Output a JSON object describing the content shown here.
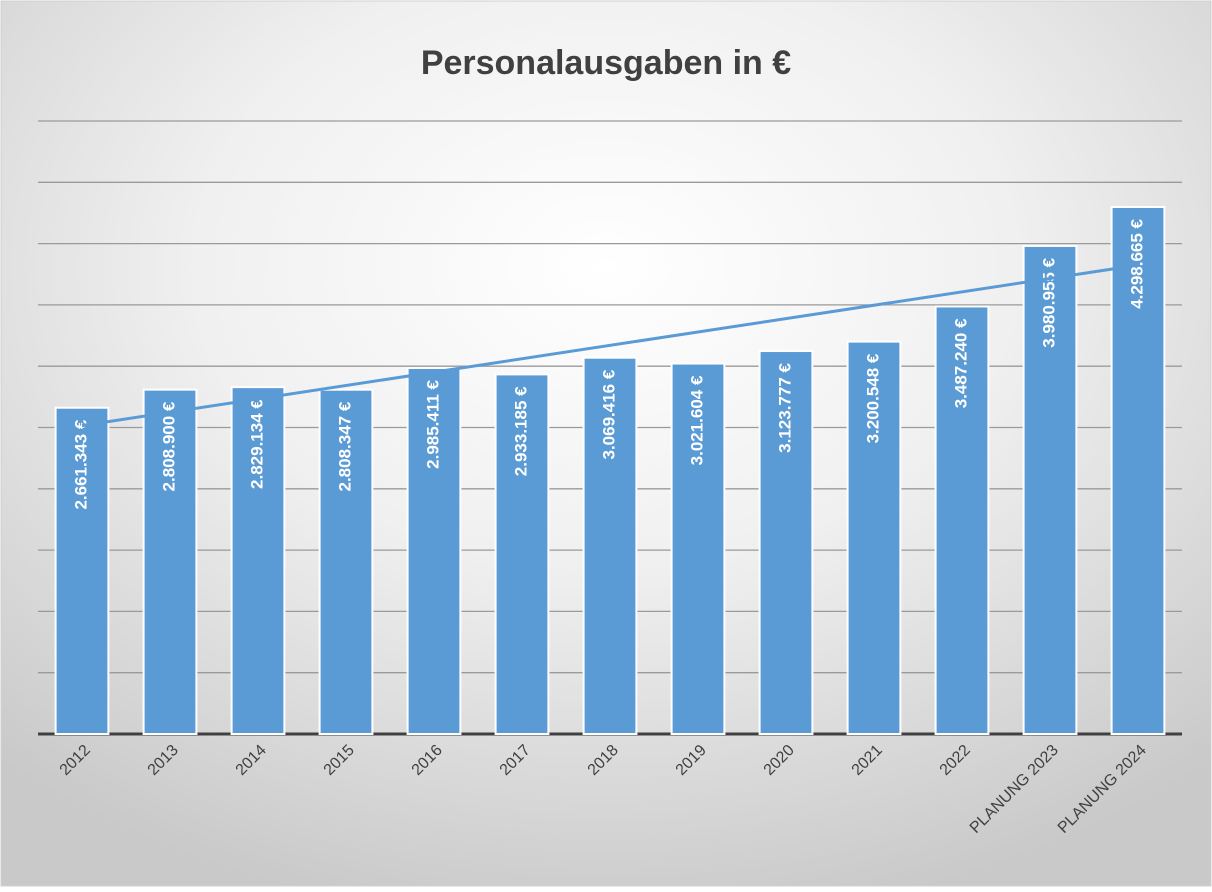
{
  "chart_data": {
    "type": "bar",
    "title": "Personalausgaben in €",
    "categories": [
      "2012",
      "2013",
      "2014",
      "2015",
      "2016",
      "2017",
      "2018",
      "2019",
      "2020",
      "2021",
      "2022",
      "PLANUNG 2023",
      "PLANUNG 2024"
    ],
    "values": [
      2661343,
      2808900,
      2829134,
      2808347,
      2985411,
      2933185,
      3069416,
      3021604,
      3123777,
      3200548,
      3487240,
      3980955,
      4298665
    ],
    "value_labels": [
      "2.661.343 €",
      "2.808.900 €",
      "2.829.134 €",
      "2.808.347 €",
      "2.985.411 €",
      "2.933.185 €",
      "3.069.416 €",
      "3.021.604 €",
      "3.123.777 €",
      "3.200.548 €",
      "3.487.240 €",
      "3.980.955 €",
      "4.298.665 €"
    ],
    "color": "#5b9bd5",
    "ylim": [
      0,
      5000000
    ],
    "yticks": [
      0,
      500000,
      1000000,
      1500000,
      2000000,
      2500000,
      3000000,
      3500000,
      4000000,
      4500000,
      5000000
    ],
    "grid": true,
    "trendline": "linear"
  }
}
